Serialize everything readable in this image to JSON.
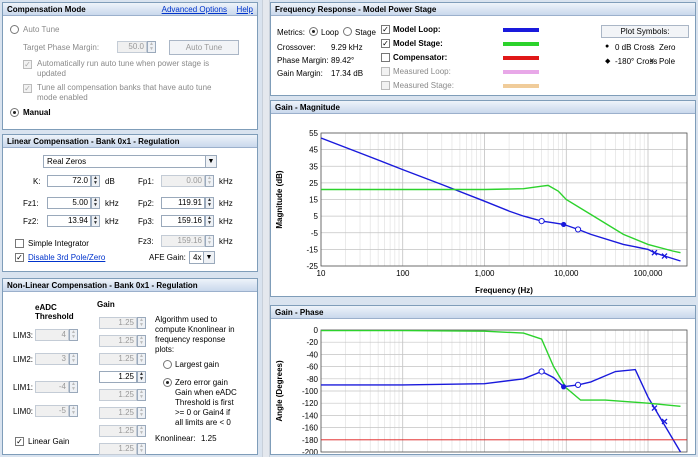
{
  "comp_mode": {
    "title": "Compensation Mode",
    "advanced": "Advanced Options",
    "help": "Help",
    "auto_tune": "Auto Tune",
    "target_pm_label": "Target Phase Margin:",
    "target_pm_value": "50.0",
    "auto_tune_button": "Auto Tune",
    "auto_run_text": [
      "Automatically run auto tune when power stage is",
      "updated"
    ],
    "tune_all_text": [
      "Tune all compensation banks that have auto tune",
      "mode enabled"
    ],
    "manual": "Manual"
  },
  "linear": {
    "title": "Linear Compensation - Bank 0x1 - Regulation",
    "type": "Real Zeros",
    "left": [
      {
        "label": "K:",
        "value": "72.0",
        "unit": "dB"
      },
      {
        "label": "Fz1:",
        "value": "5.00",
        "unit": "kHz"
      },
      {
        "label": "Fz2:",
        "value": "13.94",
        "unit": "kHz"
      }
    ],
    "right": [
      {
        "label": "Fp1:",
        "value": "0.00",
        "unit": "kHz"
      },
      {
        "label": "Fp2:",
        "value": "119.91",
        "unit": "kHz"
      },
      {
        "label": "Fp3:",
        "value": "159.16",
        "unit": "kHz"
      },
      {
        "label": "Fz3:",
        "value": "159.16",
        "unit": "kHz"
      }
    ],
    "simple_integrator": "Simple Integrator",
    "disable_3rd": "Disable 3rd Pole/Zero",
    "afe_label": "AFE Gain:",
    "afe_value": "4x"
  },
  "nonlinear": {
    "title": "Non-Linear Compensation - Bank 0x1 - Regulation",
    "col1": [
      "eADC",
      "Threshold"
    ],
    "col2": "Gain",
    "gain_values": [
      "1.25",
      "1.25",
      "1.25",
      "1.25",
      "1.25",
      "1.25",
      "1.25",
      "1.25"
    ],
    "lims": [
      {
        "label": "LIM3:",
        "value": "4"
      },
      {
        "label": "LIM2:",
        "value": "3"
      },
      {
        "label": "LIM1:",
        "value": "-4"
      },
      {
        "label": "LIM0:",
        "value": "-5"
      }
    ],
    "algo_text": [
      "Algorithm used to",
      "compute Knonlinear in",
      "frequency response",
      "plots:"
    ],
    "largest": "Largest gain",
    "zero_err": [
      "Zero error gain",
      "Gain when eADC",
      "Threshold is first",
      ">= 0 or Gain4 if",
      "all limits are < 0"
    ],
    "knonlinear_label": "Knonlinear:",
    "knonlinear_value": "1.25",
    "linear_gain": "Linear Gain"
  },
  "freq": {
    "title": "Frequency Response - Model Power Stage",
    "metrics": "Metrics:",
    "loop": "Loop",
    "stage": "Stage",
    "crossover_label": "Crossover:",
    "crossover_value": "9.29 kHz",
    "pm_label": "Phase Margin:",
    "pm_value": "89.42°",
    "gm_label": "Gain Margin:",
    "gm_value": "17.34 dB",
    "legend": [
      {
        "label": "Model Loop:",
        "color": "#1a1adc",
        "checked": true,
        "enabled": true
      },
      {
        "label": "Model Stage:",
        "color": "#2cd22c",
        "checked": true,
        "enabled": true
      },
      {
        "label": "Compensator:",
        "color": "#e01818",
        "checked": false,
        "enabled": true
      },
      {
        "label": "Measured Loop:",
        "color": "#e8a8e8",
        "checked": false,
        "enabled": false
      },
      {
        "label": "Measured Stage:",
        "color": "#f0cc9a",
        "checked": false,
        "enabled": false
      }
    ],
    "plot_symbols": "Plot Symbols:",
    "sym": [
      {
        "glyph": "●",
        "text": "0 dB Cross"
      },
      {
        "glyph": "○",
        "text": "Zero"
      },
      {
        "glyph": "◆",
        "text": "-180° Cross"
      },
      {
        "glyph": "✕",
        "text": "Pole"
      }
    ]
  },
  "magnitude": {
    "title": "Gain - Magnitude",
    "ylabel": "Magnitude (dB)",
    "xlabel": "Frequency (Hz)",
    "yticks": [
      "55",
      "45",
      "35",
      "25",
      "15",
      "5",
      "-5",
      "-15",
      "-25"
    ],
    "xticks": [
      "10",
      "100",
      "1,000",
      "10,000",
      "100,000"
    ]
  },
  "phase": {
    "title": "Gain - Phase",
    "ylabel": "Angle (Degrees)",
    "yticks": [
      "0",
      "-20",
      "-40",
      "-60",
      "-80",
      "-100",
      "-120",
      "-140",
      "-160",
      "-180",
      "-200"
    ]
  },
  "chart_data": [
    {
      "type": "line",
      "title": "Gain - Magnitude",
      "xlabel": "Frequency (Hz)",
      "ylabel": "Magnitude (dB)",
      "xscale": "log",
      "xlim": [
        10,
        300000
      ],
      "ylim": [
        -25,
        55
      ],
      "series": [
        {
          "name": "Model Loop",
          "color": "#1a1adc",
          "x": [
            10,
            30,
            100,
            300,
            1000,
            2000,
            3000,
            5000,
            7000,
            9290,
            13940,
            20000,
            50000,
            100000,
            120000,
            159160,
            250000
          ],
          "y": [
            52,
            43,
            33,
            24,
            14,
            8,
            5,
            2,
            1,
            0,
            -3,
            -6,
            -12,
            -15,
            -17,
            -19,
            -22
          ]
        },
        {
          "name": "Model Stage",
          "color": "#2cd22c",
          "x": [
            10,
            100,
            1000,
            3000,
            5000,
            6000,
            8000,
            10000,
            20000,
            50000,
            100000,
            200000,
            250000
          ],
          "y": [
            21,
            21,
            21,
            21.5,
            23,
            23.5,
            20,
            15,
            6,
            -6,
            -12,
            -16,
            -17
          ]
        }
      ]
    },
    {
      "type": "line",
      "title": "Gain - Phase",
      "ylabel": "Angle (Degrees)",
      "xscale": "log",
      "xlim": [
        10,
        300000
      ],
      "ylim": [
        -200,
        0
      ],
      "series": [
        {
          "name": "Model Loop",
          "color": "#1a1adc",
          "x": [
            10,
            100,
            1000,
            3000,
            5000,
            7000,
            9290,
            13940,
            20000,
            40000,
            70000,
            100000,
            150000,
            250000
          ],
          "y": [
            -90,
            -90,
            -88,
            -80,
            -68,
            -78,
            -93,
            -90,
            -85,
            -68,
            -65,
            -110,
            -150,
            -200
          ]
        },
        {
          "name": "Model Stage",
          "color": "#2cd22c",
          "x": [
            10,
            100,
            1000,
            3000,
            5000,
            7000,
            10000,
            15000,
            30000,
            100000,
            250000
          ],
          "y": [
            -1,
            -1,
            -2,
            -5,
            -15,
            -60,
            -95,
            -115,
            -115,
            -120,
            -125
          ]
        },
        {
          "name": "Compensator",
          "color": "#e01818",
          "x": [
            10,
            300000
          ],
          "y": [
            -180,
            -180
          ]
        }
      ]
    }
  ]
}
